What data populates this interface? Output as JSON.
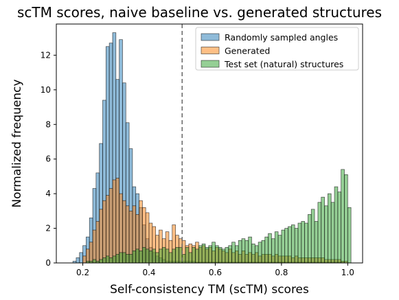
{
  "chart_data": {
    "type": "histogram",
    "title": "scTM scores, naive baseline vs. generated structures",
    "xlabel": "Self-consistency TM (scTM) scores",
    "ylabel": "Normalized frequency",
    "xlim": [
      0.12,
      1.045
    ],
    "ylim": [
      0,
      13.8
    ],
    "xticks": [
      "0.2",
      "0.4",
      "0.6",
      "0.8",
      "1.0"
    ],
    "xtick_values": [
      0.2,
      0.4,
      0.6,
      0.8,
      1.0
    ],
    "yticks": [
      "0",
      "2",
      "4",
      "6",
      "8",
      "10",
      "12"
    ],
    "ytick_values": [
      0,
      2,
      4,
      6,
      8,
      10,
      12
    ],
    "reference_line": {
      "x": 0.5,
      "style": "dashed"
    },
    "grid": false,
    "legend_position": "upper right",
    "bin_width": 0.01,
    "series": [
      {
        "name": "Randomly sampled angles",
        "color": "#1f77b4",
        "bin_start": 0.17,
        "values": [
          0.1,
          0.3,
          0.6,
          1.0,
          1.5,
          2.6,
          4.3,
          5.2,
          6.9,
          9.4,
          12.5,
          12.7,
          13.3,
          10.6,
          12.9,
          10.4,
          8.1,
          6.6,
          4.4,
          4.0,
          3.2,
          2.2,
          1.4,
          0.9,
          0.6,
          0.4,
          0.3,
          0.2,
          0.1,
          0.1,
          0.1,
          0.1,
          0.1,
          0.1,
          0.1,
          0.1,
          0.1,
          0.05,
          0.05,
          0.05,
          0.05,
          0.05,
          0.05,
          0.05,
          0.05,
          0.05,
          0.05,
          0.05,
          0.05,
          0.05,
          0.05,
          0.05,
          0.05,
          0.05,
          0.05,
          0.05,
          0.05,
          0.05,
          0.05,
          0.05,
          0.05,
          0.05,
          0.05,
          0.05,
          0.05,
          0.05,
          0.05,
          0.05,
          0.05,
          0.05,
          0.05,
          0.05,
          0.05,
          0.05,
          0.05,
          0.05,
          0.05,
          0.05,
          0.05,
          0.05,
          0.05,
          0.05
        ]
      },
      {
        "name": "Generated",
        "color": "#ff7f0e",
        "bin_start": 0.2,
        "values": [
          0.4,
          0.8,
          1.2,
          1.9,
          2.4,
          3.1,
          3.6,
          3.9,
          4.3,
          4.8,
          4.9,
          4.0,
          3.6,
          3.3,
          3.0,
          3.3,
          2.8,
          3.6,
          3.2,
          2.9,
          2.3,
          2.1,
          1.6,
          1.9,
          1.4,
          1.8,
          1.3,
          2.2,
          1.6,
          1.4,
          1.3,
          1.0,
          1.1,
          1.0,
          1.2,
          0.9,
          1.0,
          0.8,
          0.9,
          0.7,
          0.9,
          0.8,
          0.7,
          0.6,
          0.8,
          0.6,
          0.7,
          0.5,
          0.7,
          0.5,
          0.6,
          0.5,
          0.6,
          0.4,
          0.5,
          0.5,
          0.5,
          0.4,
          0.5,
          0.4,
          0.4,
          0.4,
          0.4,
          0.3,
          0.4,
          0.3,
          0.3,
          0.3,
          0.3,
          0.3,
          0.3,
          0.3,
          0.3,
          0.2,
          0.2,
          0.2,
          0.2,
          0.2,
          0.1,
          0.1
        ]
      },
      {
        "name": "Test set (natural) structures",
        "color": "#2ca02c",
        "bin_start": 0.21,
        "values": [
          0.1,
          0.1,
          0.2,
          0.1,
          0.2,
          0.3,
          0.4,
          0.3,
          0.4,
          0.5,
          0.6,
          0.6,
          0.5,
          0.5,
          0.7,
          0.8,
          0.7,
          0.9,
          0.8,
          0.7,
          0.8,
          0.6,
          0.8,
          0.9,
          0.8,
          0.6,
          0.8,
          0.9,
          0.9,
          0.5,
          0.9,
          0.6,
          0.9,
          0.8,
          1.0,
          1.1,
          0.9,
          1.0,
          1.2,
          1.0,
          0.9,
          0.8,
          0.9,
          1.0,
          1.2,
          1.0,
          1.3,
          1.4,
          1.3,
          1.5,
          1.1,
          1.0,
          1.2,
          1.3,
          1.5,
          1.7,
          1.4,
          1.8,
          1.6,
          1.9,
          2.0,
          2.1,
          2.2,
          2.0,
          2.3,
          2.4,
          2.3,
          2.8,
          3.1,
          2.4,
          3.5,
          3.8,
          3.3,
          4.0,
          3.5,
          4.4,
          4.1,
          5.4,
          5.1,
          3.2
        ]
      }
    ]
  }
}
